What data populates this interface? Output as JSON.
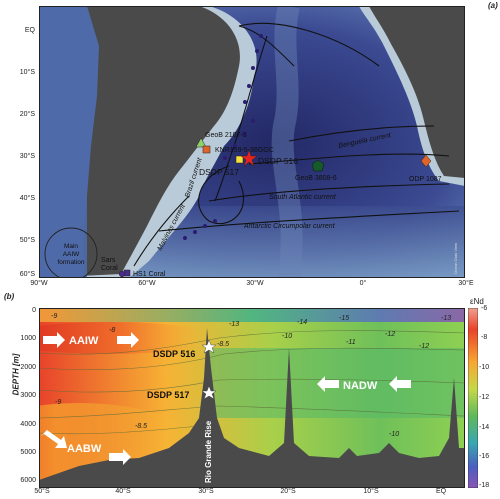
{
  "panel_a": {
    "label": "(a)",
    "lat_ticks": [
      "EQ",
      "10°S",
      "20°S",
      "30°S",
      "40°S",
      "50°S",
      "60°S"
    ],
    "lon_ticks": [
      "90°W",
      "60°W",
      "30°W",
      "0°",
      "30°E"
    ],
    "sites": {
      "geob2107": "GeoB 2107-3",
      "knr159": "KNR159-5-36GGC",
      "dsdp516": "DSDP 516",
      "dsdp517": "DSDP 517",
      "geob3808": "GeoB 3808-6",
      "odp1087": "ODP 1087",
      "hs1": "HS1 Coral",
      "sars": "Sars\nCoral"
    },
    "currents": {
      "benguela": "Benguela current",
      "brazil": "Brazil current",
      "malvinas": "Malvinas current",
      "south_atlantic": "South Atlantic current",
      "acc": "Antarctic Circumpolar current"
    },
    "aaiw_formation": "Main AAIW formation",
    "credit": "Ocean Data View",
    "colors": {
      "ocean_deep": "#2b2f6e",
      "ocean_mid": "#4a5fa3",
      "shelf": "#b8c9d6",
      "land": "#4a4a4a",
      "marker_green": "#8fd06a",
      "marker_orange": "#e0632a",
      "marker_yellow": "#f6e23a",
      "marker_red": "#e52420",
      "marker_darkgreen": "#155a2a",
      "marker_purple": "#4a2c8a"
    }
  },
  "panel_b": {
    "label": "(b)",
    "ylabel": "DEPTH [m]",
    "colorbar_title": "εNd",
    "colorbar_ticks": [
      "-6",
      "-8",
      "-10",
      "-12",
      "-14",
      "-16",
      "-18"
    ],
    "depth_ticks": [
      "0",
      "1000",
      "2000",
      "3000",
      "4000",
      "5000",
      "6000"
    ],
    "lat_ticks": [
      "50°S",
      "40°S",
      "30°S",
      "20°S",
      "10°S",
      "EQ"
    ],
    "water_masses": {
      "aaiw": "AAIW",
      "nadw": "NADW",
      "aabw": "AABW"
    },
    "site_labels": {
      "dsdp516": "DSDP 516",
      "dsdp517": "DSDP 517"
    },
    "ridge_label": "Rio Grande Rise",
    "contour_labels": [
      "-9",
      "-8",
      "-8.5",
      "-13",
      "-14",
      "-15",
      "-13",
      "-10",
      "-11",
      "-12",
      "-12",
      "-9",
      "-8.5",
      "-10"
    ],
    "credit": "Ocean Data View / DIVA"
  }
}
